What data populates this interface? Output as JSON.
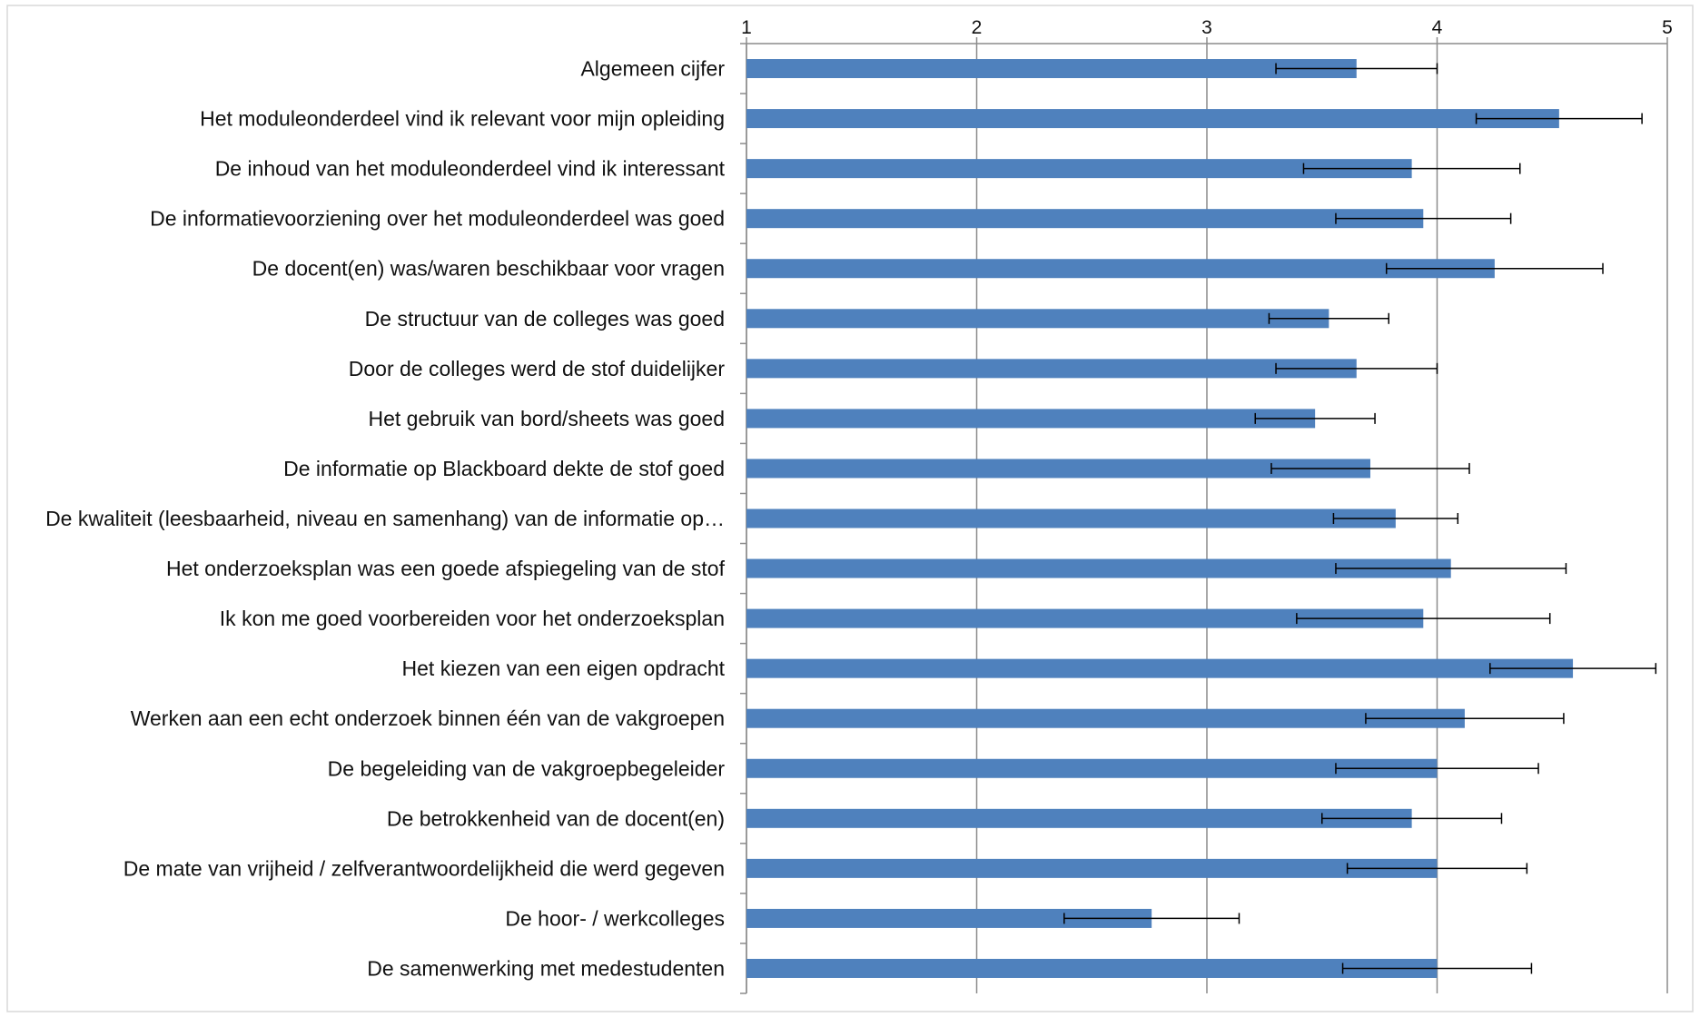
{
  "chart_data": {
    "type": "bar",
    "orientation": "horizontal",
    "title": "",
    "xlabel": "",
    "ylabel": "",
    "xlim": [
      1,
      5
    ],
    "x_ticks": [
      "1",
      "2",
      "3",
      "4",
      "5"
    ],
    "x_axis_position": "top",
    "grid": true,
    "legend": "none",
    "bar_color": "#4f81bd",
    "error_bar_color": "#000000",
    "grid_color": "#8c8c8c",
    "categories": [
      "Algemeen cijfer",
      "Het moduleonderdeel vind ik relevant voor mijn opleiding",
      "De inhoud van het moduleonderdeel vind ik interessant",
      "De informatievoorziening over het moduleonderdeel was goed",
      "De docent(en) was/waren beschikbaar voor vragen",
      "De structuur van de colleges was goed",
      "Door de colleges werd de stof duidelijker",
      "Het gebruik van bord/sheets was goed",
      "De informatie op Blackboard dekte de stof goed",
      "De kwaliteit (leesbaarheid, niveau en samenhang) van de informatie op…",
      "Het onderzoeksplan was een goede afspiegeling van de stof",
      "Ik kon me goed voorbereiden voor het onderzoeksplan",
      "Het kiezen van een eigen opdracht",
      "Werken aan een echt onderzoek binnen één van de vakgroepen",
      "De begeleiding van de vakgroepbegeleider",
      "De betrokkenheid van de docent(en)",
      "De mate van vrijheid / zelfverantwoordelijkheid die werd gegeven",
      "De hoor- / werkcolleges",
      "De samenwerking met medestudenten"
    ],
    "values": [
      3.65,
      4.53,
      3.89,
      3.94,
      4.25,
      3.53,
      3.65,
      3.47,
      3.71,
      3.82,
      4.06,
      3.94,
      4.59,
      4.12,
      4.0,
      3.89,
      4.0,
      2.76,
      4.0
    ],
    "error": [
      0.35,
      0.36,
      0.47,
      0.38,
      0.47,
      0.26,
      0.35,
      0.26,
      0.43,
      0.27,
      0.5,
      0.55,
      0.36,
      0.43,
      0.44,
      0.39,
      0.39,
      0.38,
      0.41
    ]
  }
}
